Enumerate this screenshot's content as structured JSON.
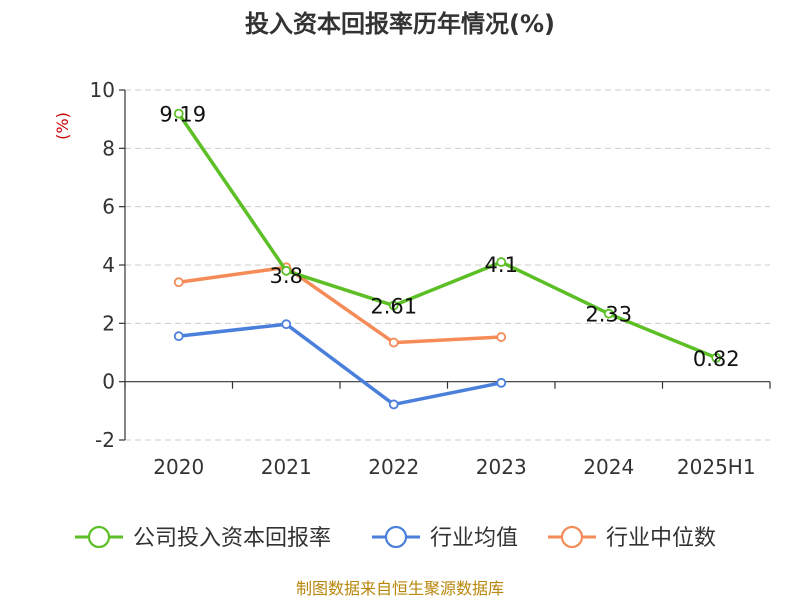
{
  "chart_data": {
    "type": "line",
    "title": "投入资本回报率历年情况(%)",
    "ylabel": "(%)",
    "categories": [
      "2020",
      "2021",
      "2022",
      "2023",
      "2024",
      "2025H1"
    ],
    "ylim": [
      -2,
      10
    ],
    "yticks": [
      -2,
      0,
      2,
      4,
      6,
      8,
      10
    ],
    "grid": true,
    "legend_position": "bottom",
    "series": [
      {
        "name": "公司投入资本回报率",
        "color": "#5cbf26",
        "values": [
          9.19,
          3.8,
          2.61,
          4.1,
          2.33,
          0.82
        ],
        "labels": [
          "9.19",
          "3.8",
          "2.61",
          "4.1",
          "2.33",
          "0.82"
        ]
      },
      {
        "name": "行业均值",
        "color": "#4a7fdc",
        "values": [
          1.56,
          1.97,
          -0.78,
          -0.04,
          null,
          null
        ]
      },
      {
        "name": "行业中位数",
        "color": "#f58b57",
        "values": [
          3.41,
          3.92,
          1.34,
          1.53,
          null,
          null
        ]
      }
    ]
  },
  "source": "制图数据来自恒生聚源数据库"
}
